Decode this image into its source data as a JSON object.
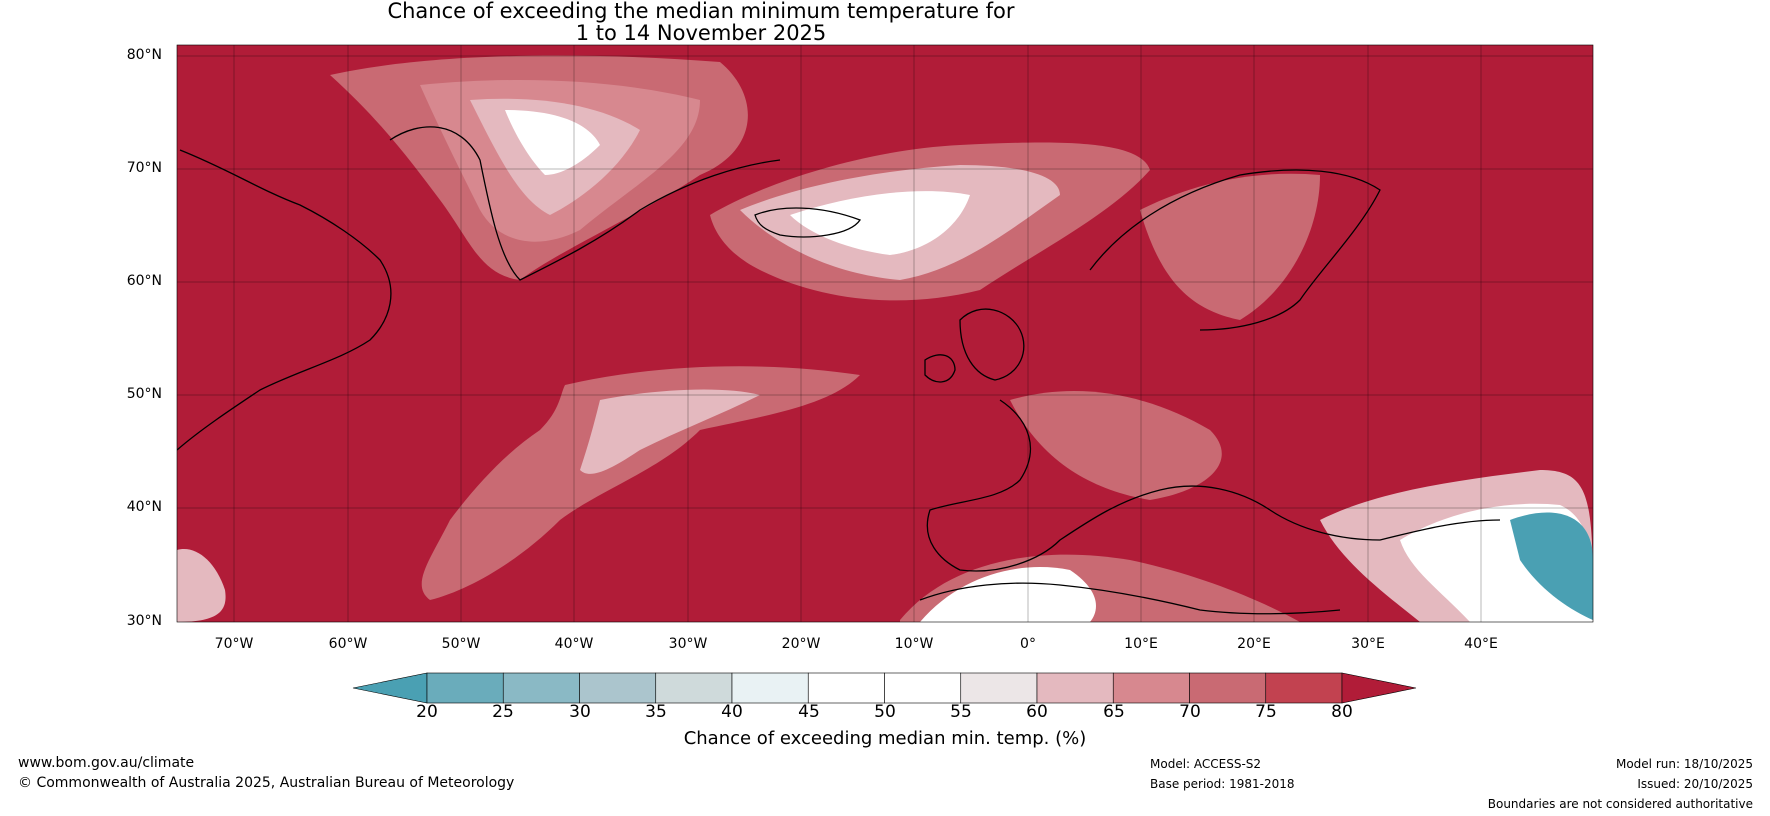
{
  "title_line1": "Chance of exceeding the median minimum temperature for",
  "title_line2": "1 to 14 November 2025",
  "lat_labels": [
    "80°N",
    "70°N",
    "60°N",
    "50°N",
    "40°N",
    "30°N"
  ],
  "lon_labels": [
    "70°W",
    "60°W",
    "50°W",
    "40°W",
    "30°W",
    "20°W",
    "10°W",
    "0°",
    "10°E",
    "20°E",
    "30°E",
    "40°E"
  ],
  "colorbar": {
    "ticks": [
      "20",
      "25",
      "30",
      "35",
      "40",
      "45",
      "50",
      "55",
      "60",
      "65",
      "70",
      "75",
      "80"
    ],
    "colors": [
      "#4aa0b3",
      "#6aacbb",
      "#8ab9c5",
      "#abc5cd",
      "#cfdadb",
      "#e9f2f4",
      "#ffffff",
      "#ffffff",
      "#ece6e7",
      "#e4b9bf",
      "#d7888f",
      "#c96a73",
      "#c24250",
      "#b11c38"
    ],
    "label": "Chance of exceeding median min. temp. (%)"
  },
  "map_colors": {
    "high": "#b11c38",
    "mid": "#c96a73",
    "low": "#e4b9bf",
    "lowest": "#ffffff",
    "below": "#4aa0b3"
  },
  "footer": {
    "url": "www.bom.gov.au/climate",
    "copyright": "© Commonwealth of Australia 2025, Australian Bureau of Meteorology",
    "model": "Model: ACCESS-S2",
    "base_period": "Base period: 1981-2018",
    "model_run": "Model run: 18/10/2025",
    "issued": "Issued: 20/10/2025",
    "disclaimer": "Boundaries are not considered authoritative"
  }
}
